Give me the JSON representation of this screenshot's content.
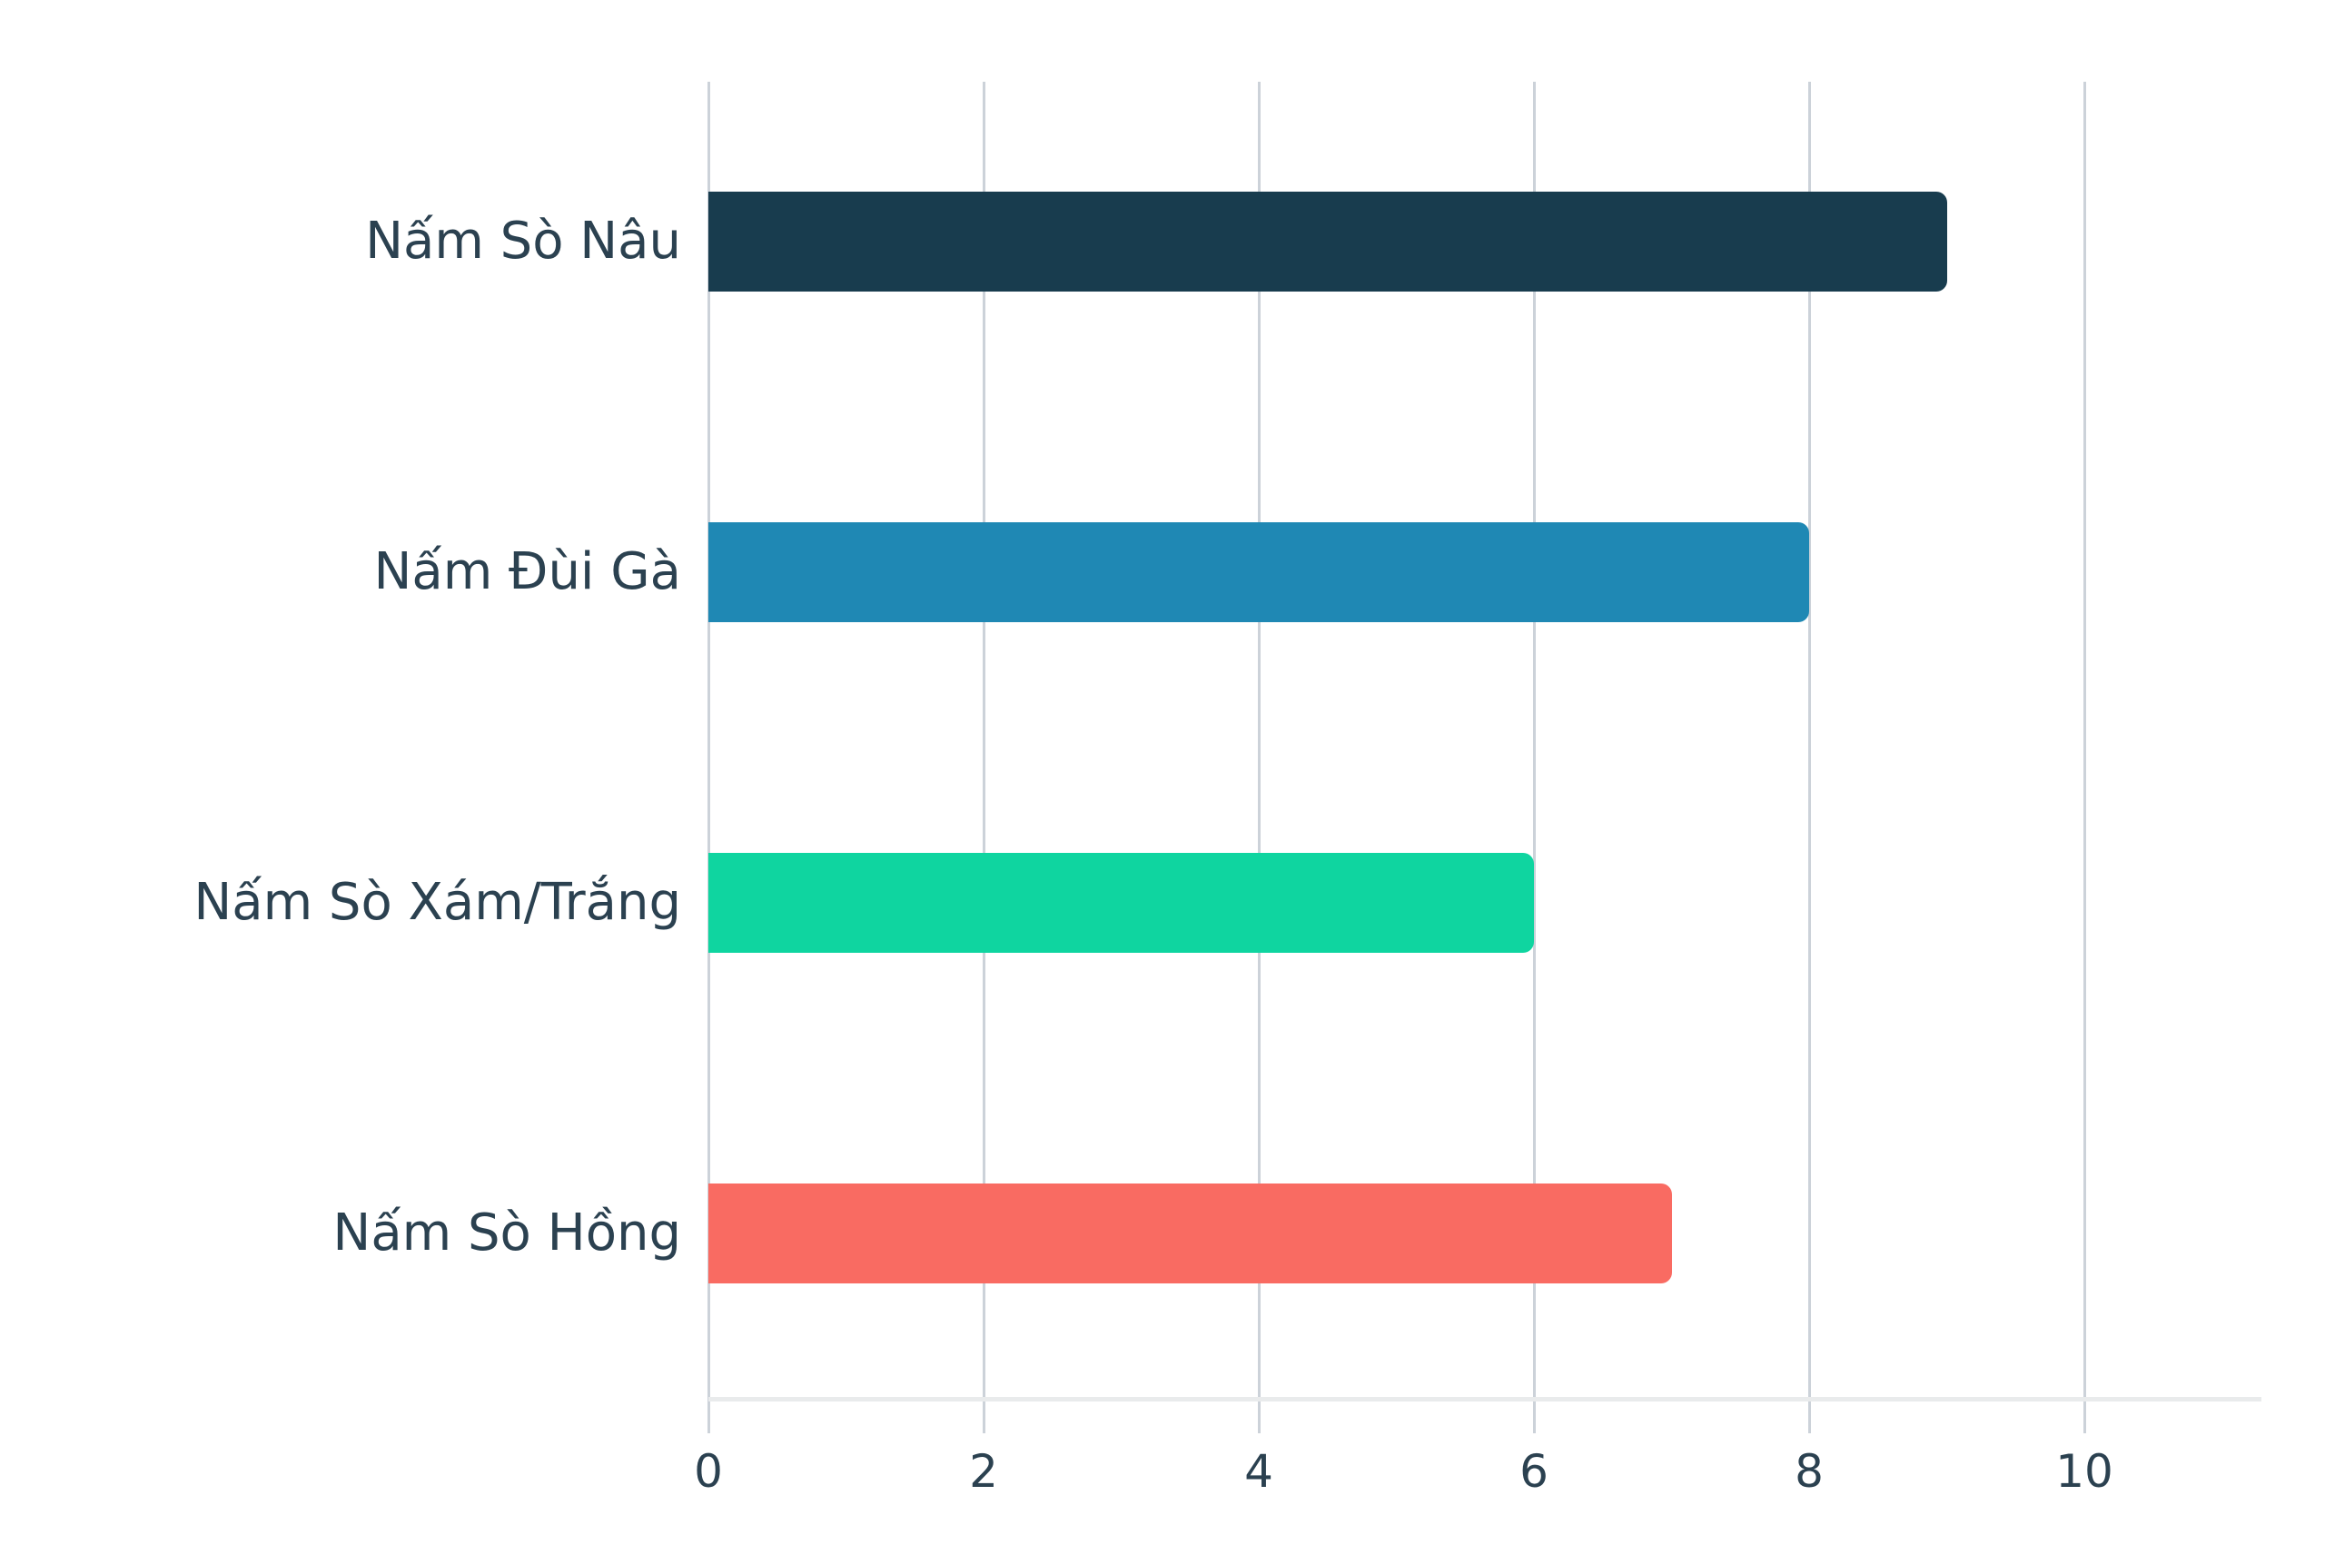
{
  "chart_data": {
    "type": "bar",
    "orientation": "horizontal",
    "title": "",
    "xlabel": "",
    "ylabel": "",
    "categories": [
      "Nấm Sò Nâu",
      "Nấm Đùi Gà",
      "Nấm Sò Xám/Trắng",
      "Nấm Sò Hồng"
    ],
    "values": [
      9,
      8,
      6,
      7
    ],
    "bar_colors": [
      "#183c4e",
      "#1f88b4",
      "#0fd5a0",
      "#f96b62"
    ],
    "xlim": [
      0,
      10
    ],
    "x_tick_labels": [
      "0",
      "2",
      "4",
      "6",
      "8",
      "10"
    ],
    "x_tick_values": [
      0,
      2,
      4,
      6,
      8,
      10
    ],
    "grid": true,
    "legend": false
  },
  "style": {
    "background_color": "#ffffff",
    "grid_color": "#ccd2d9",
    "axis_line_color": "#e9ebec",
    "text_color": "#2b4150"
  }
}
